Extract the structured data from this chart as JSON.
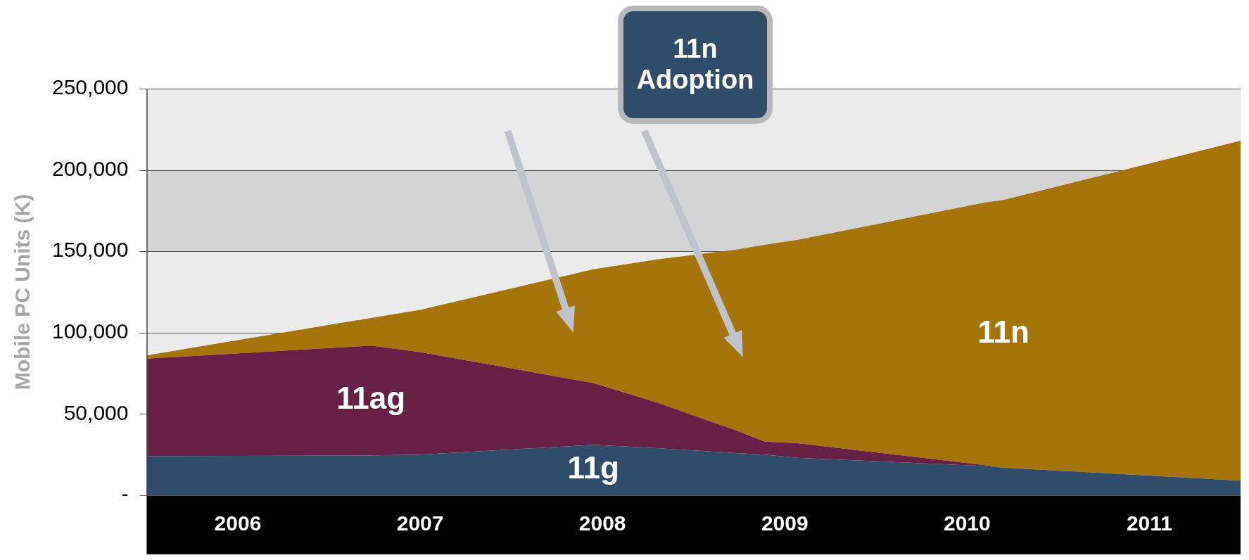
{
  "chart_data": {
    "type": "area",
    "stacked": true,
    "ylabel": "Mobile PC Units (K)",
    "annotations": [
      "11n Adoption"
    ],
    "x": [
      2005.5,
      2006.73,
      2007.0,
      2007.95,
      2008.3,
      2008.73,
      2008.89,
      2009.07,
      2010.1,
      2010.2,
      2011.5
    ],
    "series": [
      {
        "name": "11g",
        "color": "#2f4d6b",
        "values": [
          24000,
          24500,
          25000,
          31000,
          29000,
          26000,
          25000,
          23000,
          18000,
          17000,
          9000
        ]
      },
      {
        "name": "11ag",
        "color": "#661f45",
        "values": [
          60000,
          67500,
          63000,
          38000,
          28000,
          14000,
          8000,
          9000,
          500,
          0,
          0
        ]
      },
      {
        "name": "11n",
        "color": "#a5740a",
        "values": [
          2000,
          17000,
          26000,
          70000,
          88000,
          111000,
          121000,
          125000,
          161500,
          164500,
          209000
        ]
      }
    ],
    "xlim": [
      2005.5,
      2011.5
    ],
    "xticks": [
      2006,
      2007,
      2008,
      2009,
      2010,
      2011
    ],
    "ylim": [
      0,
      250000
    ],
    "yticks": [
      {
        "value": 0,
        "label": "-"
      },
      {
        "value": 50000,
        "label": "50,000"
      },
      {
        "value": 100000,
        "label": "100,000"
      },
      {
        "value": 150000,
        "label": "150,000"
      },
      {
        "value": 200000,
        "label": "200,000"
      },
      {
        "value": 250000,
        "label": "250,000"
      }
    ],
    "bands": [
      {
        "axis": "y",
        "from": 150000,
        "to": 200000,
        "color": "#d4d4d4"
      }
    ],
    "grid": "y",
    "legend": false
  }
}
